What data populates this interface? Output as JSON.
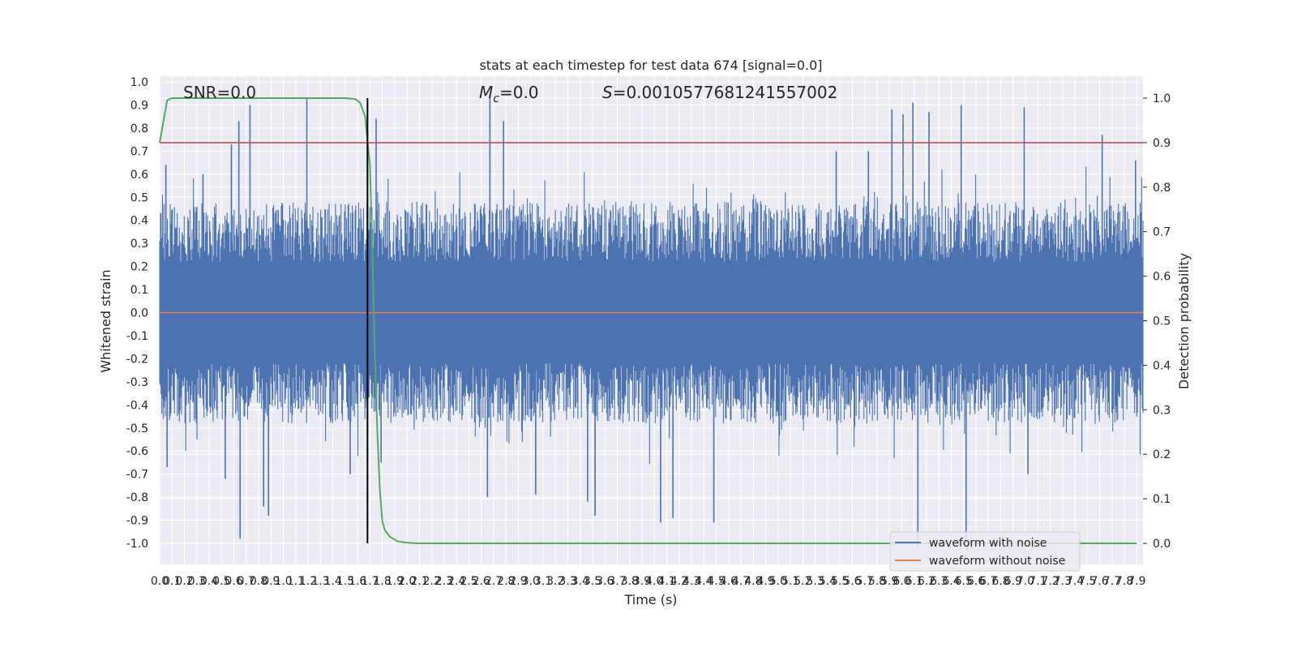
{
  "chart_data": {
    "type": "line",
    "title": "stats at each timestep for test data 674 [signal=0.0]",
    "xlabel": "Time (s)",
    "ylabel_left": "Whitened strain",
    "ylabel_right": "Detection probability",
    "xlim": [
      0.0,
      7.95
    ],
    "ylim_left": [
      -1.1,
      1.03
    ],
    "ylim_right": [
      -0.05,
      1.04
    ],
    "grid": true,
    "legend_position": "bottom-right",
    "x_ticks": [
      "0.0",
      "0.1",
      "0.2",
      "0.3",
      "0.4",
      "0.5",
      "0.6",
      "0.7",
      "0.8",
      "0.9",
      "1.0",
      "1.1",
      "1.2",
      "1.3",
      "1.4",
      "1.5",
      "1.6",
      "1.7",
      "1.8",
      "1.9",
      "2.0",
      "2.1",
      "2.2",
      "2.3",
      "2.4",
      "2.5",
      "2.6",
      "2.7",
      "2.8",
      "2.9",
      "3.0",
      "3.1",
      "3.2",
      "3.3",
      "3.4",
      "3.5",
      "3.6",
      "3.7",
      "3.8",
      "3.9",
      "4.0",
      "4.1",
      "4.2",
      "4.3",
      "4.4",
      "4.5",
      "4.6",
      "4.7",
      "4.8",
      "4.9",
      "5.0",
      "5.1",
      "5.2",
      "5.3",
      "5.4",
      "5.5",
      "5.6",
      "5.7",
      "5.8",
      "5.9",
      "6.0",
      "6.1",
      "6.2",
      "6.3",
      "6.4",
      "6.5",
      "6.6",
      "6.7",
      "6.8",
      "6.9",
      "7.0",
      "7.1",
      "7.2",
      "7.3",
      "7.4",
      "7.5",
      "7.6",
      "7.7",
      "7.8",
      "7.9"
    ],
    "y_ticks_left": [
      "1.0",
      "0.9",
      "0.8",
      "0.7",
      "0.6",
      "0.5",
      "0.4",
      "0.3",
      "0.2",
      "0.1",
      "0.0",
      "-0.1",
      "-0.2",
      "-0.3",
      "-0.4",
      "-0.5",
      "-0.6",
      "-0.7",
      "-0.8",
      "-0.9",
      "-1.0"
    ],
    "y_ticks_right": [
      "1.0",
      "0.9",
      "0.8",
      "0.7",
      "0.6",
      "0.5",
      "0.4",
      "0.3",
      "0.2",
      "0.1",
      "0.0"
    ],
    "annotations": {
      "snr": "SNR=0.0",
      "mc_symbol": "M",
      "mc_sub": "c",
      "mc_value": "=0.0",
      "s_symbol": "S",
      "s_value": "=0.0010577681241557002"
    },
    "detection_threshold": 0.9,
    "event_marker_x": 1.68,
    "series": [
      {
        "name": "waveform with noise",
        "color": "#4c72b0",
        "axis": "left",
        "description": "dense noise filling roughly -0.45..0.45, with spikes",
        "spikes": [
          {
            "x": 0.05,
            "y": 0.64
          },
          {
            "x": 0.06,
            "y": -0.67
          },
          {
            "x": 0.35,
            "y": 0.6
          },
          {
            "x": 0.53,
            "y": -0.72
          },
          {
            "x": 0.58,
            "y": 0.73
          },
          {
            "x": 0.64,
            "y": 0.83
          },
          {
            "x": 0.65,
            "y": -0.98
          },
          {
            "x": 0.73,
            "y": 0.9
          },
          {
            "x": 0.84,
            "y": -0.84
          },
          {
            "x": 0.88,
            "y": -0.88
          },
          {
            "x": 1.19,
            "y": 0.93
          },
          {
            "x": 1.54,
            "y": -0.7
          },
          {
            "x": 1.75,
            "y": 0.84
          },
          {
            "x": 1.79,
            "y": -0.65
          },
          {
            "x": 2.67,
            "y": 0.93
          },
          {
            "x": 2.78,
            "y": 0.83
          },
          {
            "x": 2.65,
            "y": -0.8
          },
          {
            "x": 3.04,
            "y": -0.79
          },
          {
            "x": 3.46,
            "y": -0.82
          },
          {
            "x": 3.52,
            "y": -0.88
          },
          {
            "x": 4.05,
            "y": -0.91
          },
          {
            "x": 4.15,
            "y": -0.89
          },
          {
            "x": 4.48,
            "y": -0.91
          },
          {
            "x": 5.47,
            "y": 0.7
          },
          {
            "x": 5.73,
            "y": 0.7
          },
          {
            "x": 5.92,
            "y": 0.88
          },
          {
            "x": 6.09,
            "y": 0.91
          },
          {
            "x": 6.01,
            "y": 0.86
          },
          {
            "x": 6.22,
            "y": 0.87
          },
          {
            "x": 6.48,
            "y": 0.9
          },
          {
            "x": 6.13,
            "y": -1.02
          },
          {
            "x": 6.52,
            "y": -1.0
          },
          {
            "x": 6.99,
            "y": 0.89
          },
          {
            "x": 7.62,
            "y": 0.77
          },
          {
            "x": 7.89,
            "y": 0.66
          },
          {
            "x": 7.02,
            "y": -0.7
          }
        ]
      },
      {
        "name": "waveform without noise",
        "color": "#dd8452",
        "axis": "left",
        "x": [
          0.0,
          7.95
        ],
        "y": [
          0.0,
          0.0
        ]
      },
      {
        "name": "",
        "color": "#55a868",
        "axis": "right",
        "x": [
          0.0,
          0.06,
          0.1,
          0.2,
          0.5,
          1.0,
          1.5,
          1.58,
          1.62,
          1.66,
          1.7,
          1.72,
          1.74,
          1.76,
          1.78,
          1.8,
          1.82,
          1.86,
          1.92,
          1.98,
          2.05,
          2.1,
          2.2,
          3.0,
          5.0,
          7.9
        ],
        "y": [
          0.9,
          0.995,
          1.0,
          1.0,
          1.0,
          1.0,
          1.0,
          0.998,
          0.99,
          0.96,
          0.85,
          0.65,
          0.42,
          0.25,
          0.12,
          0.05,
          0.03,
          0.015,
          0.005,
          0.002,
          0.0005,
          0.0,
          0.0,
          0.0,
          0.0,
          0.0
        ]
      },
      {
        "name": "",
        "color": "#c44e52",
        "axis": "right",
        "x": [
          0.0,
          7.95
        ],
        "y": [
          0.9,
          0.9
        ]
      }
    ]
  }
}
